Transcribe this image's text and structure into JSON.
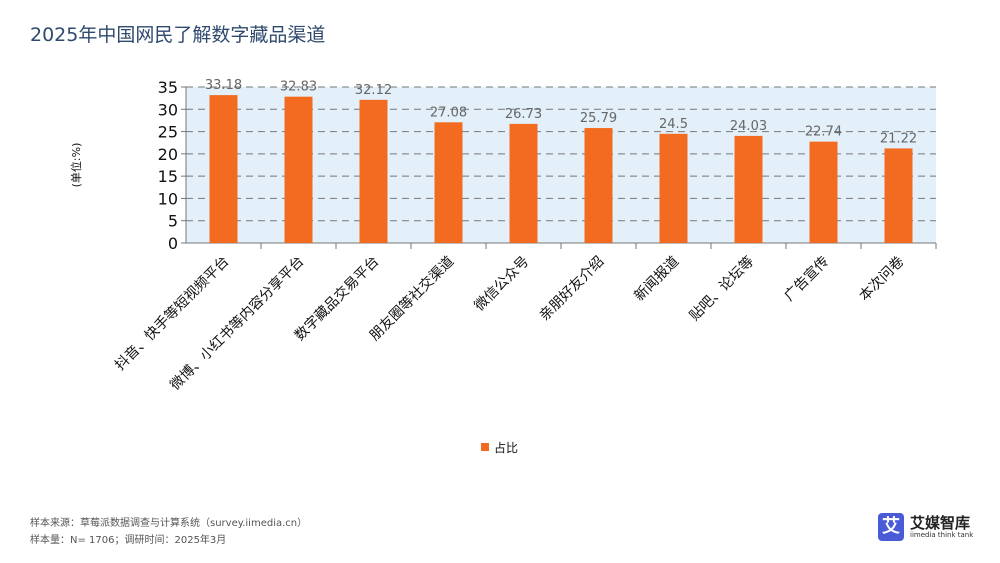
{
  "title": "2025年中国网民了解数字藏品渠道",
  "chart_data": {
    "type": "bar",
    "title": "2025年中国网民了解数字藏品渠道",
    "ylabel": "(单位:%)",
    "ylim": [
      0,
      35
    ],
    "yticks": [
      0,
      5,
      10,
      15,
      20,
      25,
      30,
      35
    ],
    "grid": true,
    "legend_position": "bottom",
    "categories": [
      "抖音、快手等短视频平台",
      "微博、小红书等内容分享平台",
      "数字藏品交易平台",
      "朋友圈等社交渠道",
      "微信公众号",
      "亲朋好友介绍",
      "新闻报道",
      "贴吧、论坛等",
      "广告宣传",
      "本次问卷"
    ],
    "series": [
      {
        "name": "占比",
        "values": [
          33.18,
          32.83,
          32.12,
          27.08,
          26.73,
          25.79,
          24.5,
          24.03,
          22.74,
          21.22
        ],
        "color": "#f26b21"
      }
    ],
    "plot_bg": "#e3f0fa"
  },
  "footer": {
    "source": "样本来源：草莓派数据调查与计算系统（survey.iimedia.cn）",
    "sample": "样本量：N= 1706；调研时间：2025年3月"
  },
  "logo": {
    "mark": "艾",
    "name": "艾媒智库",
    "sub": "iimedia think tank"
  }
}
